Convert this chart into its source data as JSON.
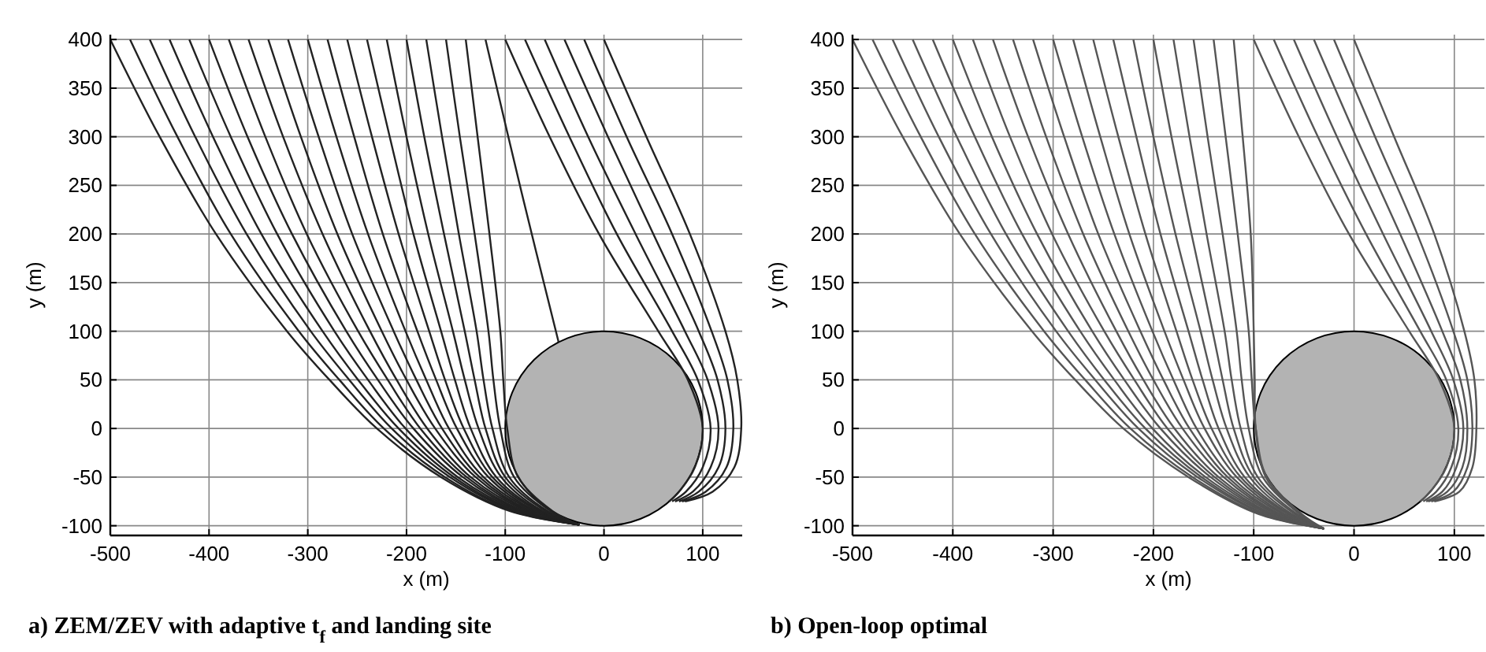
{
  "chart_data": [
    {
      "type": "line",
      "title": "a) ZEM/ZEV with adaptive t$_{f}$ and landing site",
      "xlabel": "x (m)",
      "ylabel": "y (m)",
      "xlim": [
        -500,
        140
      ],
      "ylim": [
        -110,
        405
      ],
      "xticks": [
        -500,
        -400,
        -300,
        -200,
        -100,
        0,
        100
      ],
      "yticks": [
        -100,
        -50,
        0,
        50,
        100,
        150,
        200,
        250,
        300,
        350,
        400
      ],
      "grid": true,
      "marker": "none",
      "series": [
        {
          "color": "#222222",
          "x": [
            -500,
            -450,
            -393,
            -321,
            -278,
            -230,
            -165,
            -95,
            -25
          ],
          "values": [
            400,
            300,
            200,
            100,
            50,
            0,
            -50,
            -85,
            -99
          ]
        },
        {
          "color": "#222222",
          "x": [
            -480,
            -432,
            -378,
            -309,
            -268,
            -223,
            -161,
            -93,
            -25
          ],
          "values": [
            400,
            300,
            200,
            100,
            50,
            0,
            -50,
            -85,
            -99
          ]
        },
        {
          "color": "#222222",
          "x": [
            -460,
            -414,
            -362,
            -297,
            -258,
            -215,
            -156,
            -90,
            -25
          ],
          "values": [
            400,
            300,
            200,
            100,
            50,
            0,
            -50,
            -85,
            -99
          ]
        },
        {
          "color": "#222222",
          "x": [
            -440,
            -396,
            -347,
            -285,
            -249,
            -208,
            -152,
            -88,
            -25
          ],
          "values": [
            400,
            300,
            200,
            100,
            50,
            0,
            -50,
            -85,
            -99
          ]
        },
        {
          "color": "#222222",
          "x": [
            -420,
            -378,
            -331,
            -273,
            -239,
            -201,
            -148,
            -85,
            -25
          ],
          "values": [
            400,
            300,
            200,
            100,
            50,
            0,
            -50,
            -85,
            -99
          ]
        },
        {
          "color": "#222222",
          "x": [
            -400,
            -361,
            -316,
            -261,
            -229,
            -193,
            -143,
            -83,
            -25
          ],
          "values": [
            400,
            300,
            200,
            100,
            50,
            0,
            -50,
            -85,
            -99
          ]
        },
        {
          "color": "#222222",
          "x": [
            -380,
            -343,
            -301,
            -249,
            -219,
            -186,
            -139,
            -81,
            -25
          ],
          "values": [
            400,
            300,
            200,
            100,
            50,
            0,
            -50,
            -85,
            -99
          ]
        },
        {
          "color": "#222222",
          "x": [
            -360,
            -325,
            -285,
            -237,
            -210,
            -179,
            -135,
            -78,
            -25
          ],
          "values": [
            400,
            300,
            200,
            100,
            50,
            0,
            -50,
            -85,
            -99
          ]
        },
        {
          "color": "#222222",
          "x": [
            -340,
            -307,
            -270,
            -225,
            -200,
            -171,
            -130,
            -76,
            -25
          ],
          "values": [
            400,
            300,
            200,
            100,
            50,
            0,
            -50,
            -85,
            -99
          ]
        },
        {
          "color": "#222222",
          "x": [
            -320,
            -289,
            -255,
            -213,
            -190,
            -164,
            -126,
            -74,
            -25
          ],
          "values": [
            400,
            300,
            200,
            100,
            50,
            0,
            -50,
            -85,
            -99
          ]
        },
        {
          "color": "#222222",
          "x": [
            -300,
            -271,
            -239,
            -201,
            -180,
            -157,
            -122,
            -71,
            -25
          ],
          "values": [
            400,
            300,
            200,
            100,
            50,
            0,
            -50,
            -85,
            -99
          ]
        },
        {
          "color": "#222222",
          "x": [
            -280,
            -253,
            -224,
            -189,
            -170,
            -149,
            -117,
            -69,
            -25
          ],
          "values": [
            400,
            300,
            200,
            100,
            50,
            0,
            -50,
            -85,
            -99
          ]
        },
        {
          "color": "#222222",
          "x": [
            -260,
            -235,
            -208,
            -177,
            -161,
            -142,
            -113,
            -66,
            -25
          ],
          "values": [
            400,
            300,
            200,
            100,
            50,
            0,
            -50,
            -85,
            -99
          ]
        },
        {
          "color": "#222222",
          "x": [
            -240,
            -217,
            -193,
            -165,
            -151,
            -135,
            -109,
            -64,
            -25
          ],
          "values": [
            400,
            300,
            200,
            100,
            50,
            0,
            -50,
            -85,
            -99
          ]
        },
        {
          "color": "#222222",
          "x": [
            -220,
            -200,
            -178,
            -153,
            -141,
            -127,
            -104,
            -62,
            -25
          ],
          "values": [
            400,
            300,
            200,
            100,
            50,
            0,
            -50,
            -85,
            -99
          ]
        },
        {
          "color": "#222222",
          "x": [
            -200,
            -182,
            -162,
            -141,
            -131,
            -120,
            -100,
            -59,
            -25
          ],
          "values": [
            400,
            300,
            200,
            100,
            50,
            0,
            -50,
            -85,
            -99
          ]
        },
        {
          "color": "#222222",
          "x": [
            -180,
            -164,
            -147,
            -129,
            -122,
            -113,
            -96,
            -57,
            -25
          ],
          "values": [
            400,
            300,
            200,
            100,
            50,
            0,
            -50,
            -85,
            -99
          ]
        },
        {
          "color": "#222222",
          "x": [
            -160,
            -146,
            -131,
            -117,
            -112,
            -105,
            -91,
            -54,
            -25
          ],
          "values": [
            400,
            300,
            200,
            100,
            50,
            0,
            -50,
            -85,
            -99
          ]
        },
        {
          "color": "#222222",
          "x": [
            -140,
            -128,
            -116,
            -105,
            -102,
            -98,
            -87,
            -52,
            -25
          ],
          "values": [
            400,
            300,
            200,
            100,
            50,
            0,
            -50,
            -85,
            -99
          ]
        },
        {
          "color": "#222222",
          "x": [
            -120,
            -84,
            -46
          ],
          "values": [
            400,
            245,
            89
          ]
        },
        {
          "color": "#222222",
          "x": [
            -100,
            -55,
            -5,
            55,
            85,
            100,
            92,
            76,
            66
          ],
          "values": [
            400,
            300,
            200,
            100,
            50,
            0,
            -40,
            -65,
            -75
          ]
        },
        {
          "color": "#222222",
          "x": [
            -80,
            -35,
            13,
            69,
            95,
            108,
            100,
            83,
            69
          ],
          "values": [
            400,
            300,
            200,
            100,
            50,
            0,
            -40,
            -65,
            -75
          ]
        },
        {
          "color": "#222222",
          "x": [
            -60,
            -16,
            32,
            82,
            105,
            116,
            108,
            90,
            72
          ],
          "values": [
            400,
            300,
            200,
            100,
            50,
            0,
            -40,
            -65,
            -75
          ]
        },
        {
          "color": "#222222",
          "x": [
            -40,
            4,
            50,
            96,
            115,
            123,
            116,
            96,
            76
          ],
          "values": [
            400,
            300,
            200,
            100,
            50,
            0,
            -40,
            -65,
            -75
          ]
        },
        {
          "color": "#222222",
          "x": [
            -20,
            23,
            69,
            109,
            125,
            131,
            124,
            103,
            79
          ],
          "values": [
            400,
            300,
            200,
            100,
            50,
            0,
            -40,
            -65,
            -75
          ]
        },
        {
          "color": "#222222",
          "x": [
            0,
            43,
            87,
            123,
            135,
            139,
            132,
            110,
            82
          ],
          "values": [
            400,
            300,
            200,
            100,
            50,
            0,
            -40,
            -65,
            -75
          ]
        }
      ]
    },
    {
      "type": "line",
      "title": "b) Open-loop optimal",
      "xlabel": "x (m)",
      "ylabel": "y (m)",
      "xlim": [
        -500,
        130
      ],
      "ylim": [
        -110,
        405
      ],
      "xticks": [
        -500,
        -400,
        -300,
        -200,
        -100,
        0,
        100
      ],
      "yticks": [
        -100,
        -50,
        0,
        50,
        100,
        150,
        200,
        250,
        300,
        350,
        400
      ],
      "grid": true,
      "marker": "none",
      "series": [
        {
          "color": "#555555",
          "x": [
            -500,
            -450,
            -393,
            -321,
            -278,
            -230,
            -165,
            -95,
            -30
          ],
          "values": [
            400,
            300,
            200,
            100,
            50,
            0,
            -50,
            -88,
            -103
          ]
        },
        {
          "color": "#555555",
          "x": [
            -480,
            -432,
            -378,
            -309,
            -268,
            -223,
            -161,
            -93,
            -30
          ],
          "values": [
            400,
            300,
            200,
            100,
            50,
            0,
            -50,
            -88,
            -103
          ]
        },
        {
          "color": "#555555",
          "x": [
            -460,
            -414,
            -362,
            -297,
            -258,
            -215,
            -156,
            -90,
            -30
          ],
          "values": [
            400,
            300,
            200,
            100,
            50,
            0,
            -50,
            -88,
            -103
          ]
        },
        {
          "color": "#555555",
          "x": [
            -440,
            -396,
            -347,
            -285,
            -249,
            -208,
            -152,
            -88,
            -30
          ],
          "values": [
            400,
            300,
            200,
            100,
            50,
            0,
            -50,
            -88,
            -103
          ]
        },
        {
          "color": "#555555",
          "x": [
            -420,
            -378,
            -331,
            -273,
            -239,
            -201,
            -148,
            -85,
            -30
          ],
          "values": [
            400,
            300,
            200,
            100,
            50,
            0,
            -50,
            -88,
            -103
          ]
        },
        {
          "color": "#555555",
          "x": [
            -400,
            -361,
            -316,
            -261,
            -229,
            -193,
            -143,
            -83,
            -30
          ],
          "values": [
            400,
            300,
            200,
            100,
            50,
            0,
            -50,
            -88,
            -103
          ]
        },
        {
          "color": "#555555",
          "x": [
            -380,
            -343,
            -301,
            -249,
            -219,
            -186,
            -139,
            -81,
            -30
          ],
          "values": [
            400,
            300,
            200,
            100,
            50,
            0,
            -50,
            -88,
            -103
          ]
        },
        {
          "color": "#555555",
          "x": [
            -360,
            -325,
            -285,
            -237,
            -210,
            -179,
            -135,
            -78,
            -30
          ],
          "values": [
            400,
            300,
            200,
            100,
            50,
            0,
            -50,
            -88,
            -103
          ]
        },
        {
          "color": "#555555",
          "x": [
            -340,
            -307,
            -270,
            -225,
            -200,
            -171,
            -130,
            -76,
            -30
          ],
          "values": [
            400,
            300,
            200,
            100,
            50,
            0,
            -50,
            -88,
            -103
          ]
        },
        {
          "color": "#555555",
          "x": [
            -320,
            -289,
            -255,
            -213,
            -190,
            -164,
            -126,
            -74,
            -30
          ],
          "values": [
            400,
            300,
            200,
            100,
            50,
            0,
            -50,
            -88,
            -103
          ]
        },
        {
          "color": "#555555",
          "x": [
            -300,
            -271,
            -239,
            -201,
            -180,
            -157,
            -122,
            -71,
            -30
          ],
          "values": [
            400,
            300,
            200,
            100,
            50,
            0,
            -50,
            -88,
            -103
          ]
        },
        {
          "color": "#555555",
          "x": [
            -280,
            -253,
            -224,
            -189,
            -170,
            -149,
            -117,
            -69,
            -30
          ],
          "values": [
            400,
            300,
            200,
            100,
            50,
            0,
            -50,
            -88,
            -103
          ]
        },
        {
          "color": "#555555",
          "x": [
            -260,
            -235,
            -208,
            -177,
            -161,
            -142,
            -113,
            -66,
            -30
          ],
          "values": [
            400,
            300,
            200,
            100,
            50,
            0,
            -50,
            -88,
            -103
          ]
        },
        {
          "color": "#555555",
          "x": [
            -240,
            -217,
            -193,
            -165,
            -151,
            -135,
            -109,
            -64,
            -30
          ],
          "values": [
            400,
            300,
            200,
            100,
            50,
            0,
            -50,
            -88,
            -103
          ]
        },
        {
          "color": "#555555",
          "x": [
            -220,
            -200,
            -178,
            -153,
            -141,
            -127,
            -104,
            -62,
            -30
          ],
          "values": [
            400,
            300,
            200,
            100,
            50,
            0,
            -50,
            -88,
            -103
          ]
        },
        {
          "color": "#555555",
          "x": [
            -200,
            -182,
            -162,
            -141,
            -131,
            -120,
            -100,
            -59,
            -30
          ],
          "values": [
            400,
            300,
            200,
            100,
            50,
            0,
            -50,
            -88,
            -103
          ]
        },
        {
          "color": "#555555",
          "x": [
            -180,
            -164,
            -147,
            -129,
            -122,
            -113,
            -96,
            -57,
            -30
          ],
          "values": [
            400,
            300,
            200,
            100,
            50,
            0,
            -50,
            -88,
            -103
          ]
        },
        {
          "color": "#555555",
          "x": [
            -160,
            -146,
            -131,
            -117,
            -112,
            -105,
            -91,
            -54,
            -30
          ],
          "values": [
            400,
            300,
            200,
            100,
            50,
            0,
            -50,
            -88,
            -103
          ]
        },
        {
          "color": "#555555",
          "x": [
            -140,
            -128,
            -116,
            -105,
            -102,
            -98,
            -87,
            -52,
            -30
          ],
          "values": [
            400,
            300,
            200,
            100,
            50,
            0,
            -50,
            -88,
            -103
          ]
        },
        {
          "color": "#555555",
          "x": [
            -120,
            -111,
            -103,
            -100,
            -99,
            -98,
            -88,
            -54,
            -30
          ],
          "values": [
            400,
            300,
            200,
            100,
            50,
            0,
            -50,
            -88,
            -103
          ]
        },
        {
          "color": "#555555",
          "x": [
            -100,
            -55,
            -5,
            55,
            85,
            100,
            92,
            76,
            66
          ],
          "values": [
            400,
            300,
            200,
            100,
            50,
            0,
            -40,
            -65,
            -75
          ]
        },
        {
          "color": "#555555",
          "x": [
            -80,
            -36,
            12,
            66,
            92,
            104,
            97,
            82,
            69
          ],
          "values": [
            400,
            300,
            200,
            100,
            50,
            0,
            -40,
            -65,
            -75
          ]
        },
        {
          "color": "#555555",
          "x": [
            -60,
            -17,
            29,
            77,
            99,
            109,
            102,
            88,
            72
          ],
          "values": [
            400,
            300,
            200,
            100,
            50,
            0,
            -40,
            -65,
            -75
          ]
        },
        {
          "color": "#555555",
          "x": [
            -40,
            2,
            46,
            88,
            106,
            113,
            108,
            93,
            74
          ],
          "values": [
            400,
            300,
            200,
            100,
            50,
            0,
            -40,
            -65,
            -75
          ]
        },
        {
          "color": "#555555",
          "x": [
            -20,
            21,
            63,
            99,
            113,
            118,
            113,
            99,
            77
          ],
          "values": [
            400,
            300,
            200,
            100,
            50,
            0,
            -40,
            -65,
            -75
          ]
        },
        {
          "color": "#555555",
          "x": [
            0,
            40,
            80,
            110,
            120,
            122,
            118,
            105,
            80
          ],
          "values": [
            400,
            300,
            200,
            100,
            50,
            0,
            -40,
            -65,
            -75
          ]
        }
      ]
    }
  ]
}
